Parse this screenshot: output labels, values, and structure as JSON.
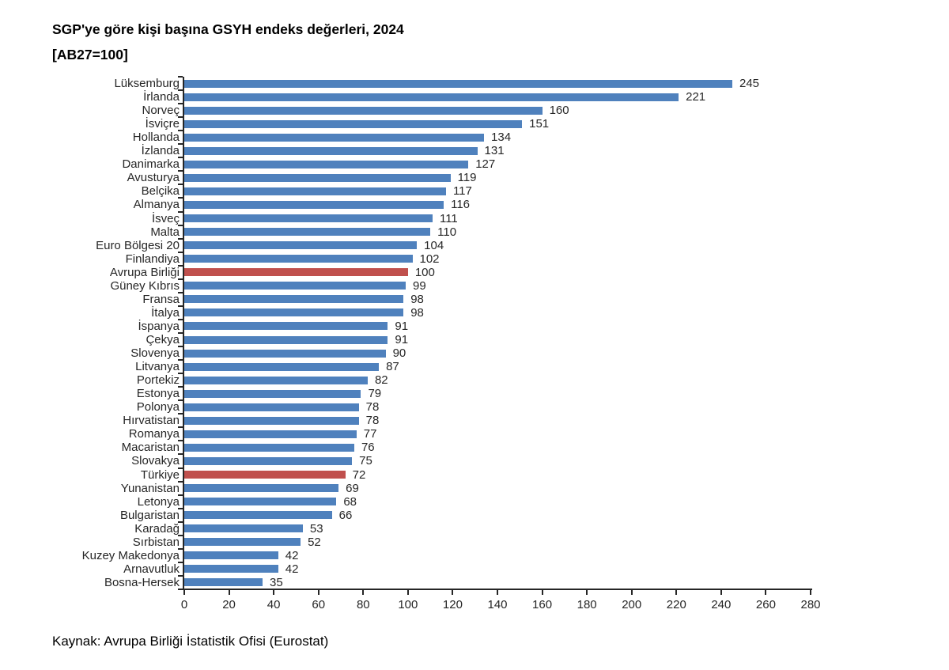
{
  "chart_data": {
    "type": "bar",
    "orientation": "horizontal",
    "title": "SGP'ye göre kişi başına GSYH endeks değerleri, 2024",
    "subtitle": "[AB27=100]",
    "source": "Kaynak: Avrupa Birliği İstatistik Ofisi (Eurostat)",
    "xlim": [
      0,
      280
    ],
    "x_ticks": [
      0,
      20,
      40,
      60,
      80,
      100,
      120,
      140,
      160,
      180,
      200,
      220,
      240,
      260,
      280
    ],
    "grid": false,
    "legend": false,
    "bar_color": "#4F81BD",
    "highlight_color": "#C0504D",
    "highlighted": [
      "Avrupa Birliği",
      "Türkiye"
    ],
    "categories": [
      "Lüksemburg",
      "İrlanda",
      "Norveç",
      "İsviçre",
      "Hollanda",
      "İzlanda",
      "Danimarka",
      "Avusturya",
      "Belçika",
      "Almanya",
      "İsveç",
      "Malta",
      "Euro Bölgesi 20",
      "Finlandiya",
      "Avrupa Birliği",
      "Güney Kıbrıs",
      "Fransa",
      "İtalya",
      "İspanya",
      "Çekya",
      "Slovenya",
      "Litvanya",
      "Portekiz",
      "Estonya",
      "Polonya",
      "Hırvatistan",
      "Romanya",
      "Macaristan",
      "Slovakya",
      "Türkiye",
      "Yunanistan",
      "Letonya",
      "Bulgaristan",
      "Karadağ",
      "Sırbistan",
      "Kuzey Makedonya",
      "Arnavutluk",
      "Bosna-Hersek"
    ],
    "values": [
      245,
      221,
      160,
      151,
      134,
      131,
      127,
      119,
      117,
      116,
      111,
      110,
      104,
      102,
      100,
      99,
      98,
      98,
      91,
      91,
      90,
      87,
      82,
      79,
      78,
      78,
      77,
      76,
      75,
      72,
      69,
      68,
      66,
      53,
      52,
      42,
      42,
      35
    ]
  }
}
